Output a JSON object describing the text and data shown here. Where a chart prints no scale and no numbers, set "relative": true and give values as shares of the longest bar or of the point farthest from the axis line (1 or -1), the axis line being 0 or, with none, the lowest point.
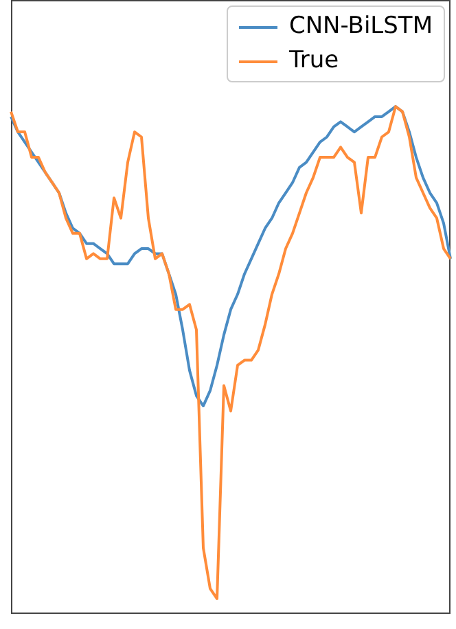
{
  "chart_data": {
    "type": "line",
    "relative": true,
    "legend": "top right",
    "marker": "none",
    "line_style": "solid",
    "categories": [
      null,
      null,
      null,
      null,
      null,
      null,
      null,
      null,
      null,
      null,
      null,
      null,
      null,
      null,
      null,
      null,
      null,
      null,
      null,
      null,
      null,
      null,
      null,
      null,
      null,
      null,
      null,
      null,
      null,
      null,
      null,
      null,
      null,
      null,
      null,
      null,
      null,
      null,
      null,
      null,
      null,
      null,
      null,
      null,
      null,
      null,
      null,
      null,
      null,
      null,
      null,
      null,
      null,
      null,
      null,
      null,
      null,
      null,
      null,
      null,
      null,
      null,
      null,
      null,
      null
    ],
    "series": [
      {
        "name": "CNN-BiLSTM",
        "color": "#4a8cc4",
        "values": [
          0.98,
          0.95,
          0.93,
          0.91,
          0.89,
          0.87,
          0.85,
          0.83,
          0.79,
          0.76,
          0.75,
          0.73,
          0.73,
          0.72,
          0.71,
          0.69,
          0.69,
          0.69,
          0.71,
          0.72,
          0.72,
          0.71,
          0.71,
          0.67,
          0.63,
          0.56,
          0.48,
          0.43,
          0.41,
          0.44,
          0.49,
          0.55,
          0.6,
          0.63,
          0.67,
          0.7,
          0.73,
          0.76,
          0.78,
          0.81,
          0.83,
          0.85,
          0.88,
          0.89,
          0.91,
          0.93,
          0.94,
          0.96,
          0.97,
          0.96,
          0.95,
          0.96,
          0.97,
          0.98,
          0.98,
          0.99,
          1,
          0.99,
          0.95,
          0.9,
          0.86,
          0.83,
          0.81,
          0.77,
          0.7
        ]
      },
      {
        "name": "True",
        "color": "#ff8c3a",
        "values": [
          0.99,
          0.95,
          0.95,
          0.9,
          0.9,
          0.87,
          0.85,
          0.83,
          0.78,
          0.75,
          0.75,
          0.7,
          0.71,
          0.7,
          0.7,
          0.82,
          0.78,
          0.89,
          0.95,
          0.94,
          0.78,
          0.7,
          0.71,
          0.67,
          0.6,
          0.6,
          0.61,
          0.56,
          0.13,
          0.05,
          0.03,
          0.45,
          0.4,
          0.49,
          0.5,
          0.5,
          0.52,
          0.57,
          0.63,
          0.67,
          0.72,
          0.75,
          0.79,
          0.83,
          0.86,
          0.9,
          0.9,
          0.9,
          0.92,
          0.9,
          0.89,
          0.79,
          0.9,
          0.9,
          0.94,
          0.95,
          1,
          0.99,
          0.94,
          0.86,
          0.83,
          0.8,
          0.78,
          0.72,
          0.7
        ]
      }
    ]
  }
}
